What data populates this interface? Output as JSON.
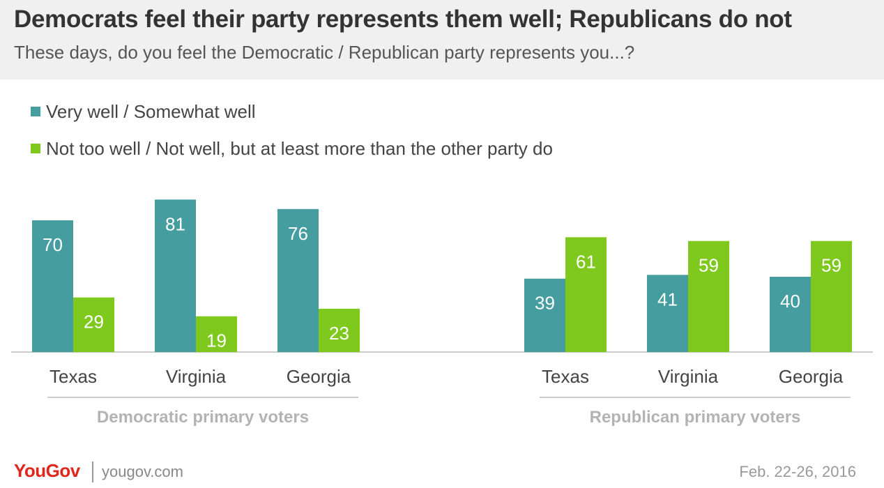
{
  "header": {
    "title": "Democrats feel their party represents them well; Republicans do not",
    "subtitle": "These days, do you feel the Democratic / Republican party represents you...?"
  },
  "chart_data": {
    "type": "bar",
    "title": "Democrats feel their party represents them well; Republicans do not",
    "subtitle": "These days, do you feel the Democratic / Republican party represents you...?",
    "series": [
      {
        "name": "Very well / Somewhat well",
        "color": "#459d9f"
      },
      {
        "name": "Not too well / Not well, but at least more than the other party do",
        "color": "#7fc91f"
      }
    ],
    "groups": [
      {
        "label": "Democratic primary voters",
        "categories": [
          "Texas",
          "Virginia",
          "Georgia"
        ],
        "values": [
          [
            70,
            81,
            76
          ],
          [
            29,
            19,
            23
          ]
        ]
      },
      {
        "label": "Republican primary voters",
        "categories": [
          "Texas",
          "Virginia",
          "Georgia"
        ],
        "values": [
          [
            39,
            41,
            40
          ],
          [
            61,
            59,
            59
          ]
        ]
      }
    ],
    "ylim": [
      0,
      100
    ],
    "grid": false,
    "legend": "top-left"
  },
  "footer": {
    "logo": "YouGov",
    "url": "yougov.com",
    "date": "Feb. 22-26, 2016"
  },
  "colors": {
    "teal": "#459d9f",
    "green": "#7fc91f",
    "brand_red": "#e1261c"
  }
}
